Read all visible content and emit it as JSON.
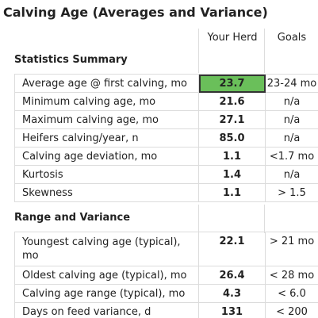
{
  "title": "Calving Age (Averages and Variance)",
  "columns": {
    "herd": "Your Herd",
    "goals": "Goals"
  },
  "colors": {
    "highlight": "#6abf5a",
    "border": "#dcdcdc"
  },
  "statistics": {
    "title": "Statistics Summary",
    "rows": [
      {
        "label": "Average age @ first calving, mo",
        "herd": "23.7",
        "goal": "23-24 mo",
        "highlight": true
      },
      {
        "label": "Minimum calving age, mo",
        "herd": "21.6",
        "goal": "n/a"
      },
      {
        "label": "Maximum calving age, mo",
        "herd": "27.1",
        "goal": "n/a"
      },
      {
        "label": "Heifers calving/year, n",
        "herd": "85.0",
        "goal": "n/a"
      },
      {
        "label": "Calving age deviation, mo",
        "herd": "1.1",
        "goal": "<1.7 mo"
      },
      {
        "label": "Kurtosis",
        "herd": "1.4",
        "goal": "n/a"
      },
      {
        "label": "Skewness",
        "herd": "1.1",
        "goal": "> 1.5"
      }
    ]
  },
  "range": {
    "title": "Range and Variance",
    "rows": [
      {
        "label": "Youngest calving age (typical), mo",
        "herd": "22.1",
        "goal": "> 21 mo"
      },
      {
        "label": "Oldest calving age (typical), mo",
        "herd": "26.4",
        "goal": "< 28 mo"
      },
      {
        "label": "Calving age range (typical), mo",
        "herd": "4.3",
        "goal": "< 6.0"
      },
      {
        "label": "Days on feed variance, d",
        "herd": "131",
        "goal": "< 200"
      }
    ]
  }
}
